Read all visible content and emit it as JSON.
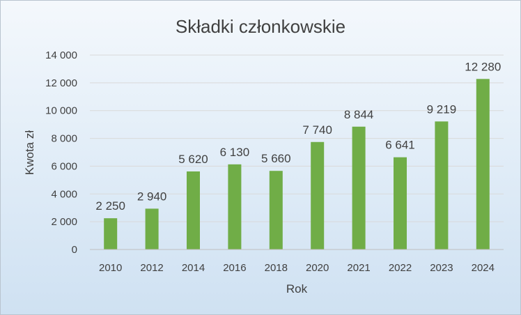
{
  "chart_data": {
    "type": "bar",
    "title": "Składki członkowskie",
    "xlabel": "Rok",
    "ylabel": "Kwota zł",
    "ylim": [
      0,
      14000
    ],
    "yticks": [
      0,
      2000,
      4000,
      6000,
      8000,
      10000,
      12000,
      14000
    ],
    "ytick_labels": [
      "0",
      "2 000",
      "4 000",
      "6 000",
      "8 000",
      "10 000",
      "12 000",
      "14 000"
    ],
    "grid": true,
    "legend": "none",
    "bar_color": "#70ad47",
    "categories": [
      "2010",
      "2012",
      "2014",
      "2016",
      "2018",
      "2020",
      "2021",
      "2022",
      "2023",
      "2024"
    ],
    "values": [
      2250,
      2940,
      5620,
      6130,
      5660,
      7740,
      8844,
      6641,
      9219,
      12280
    ],
    "data_labels": [
      "2 250",
      "2 940",
      "5 620",
      "6 130",
      "5 660",
      "7 740",
      "8 844",
      "6 641",
      "9 219",
      "12 280"
    ]
  }
}
